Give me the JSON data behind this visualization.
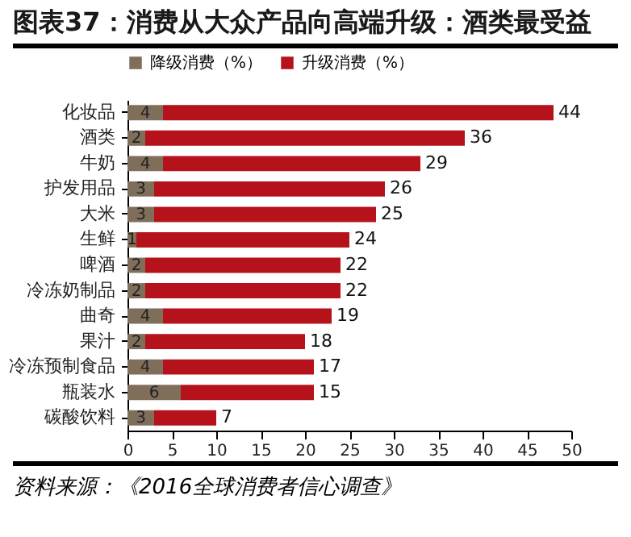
{
  "chart_data": {
    "type": "bar",
    "orientation": "horizontal",
    "stacked": true,
    "title": "图表37：消费从大众产品向高端升级：酒类最受益",
    "categories": [
      "化妆品",
      "酒类",
      "牛奶",
      "护发用品",
      "大米",
      "生鲜",
      "啤酒",
      "冷冻奶制品",
      "曲奇",
      "果汁",
      "冷冻预制食品",
      "瓶装水",
      "碳酸饮料"
    ],
    "series": [
      {
        "name": "降级消费（%）",
        "color": "#7f6f5a",
        "values": [
          4,
          2,
          4,
          3,
          3,
          1,
          2,
          2,
          4,
          2,
          4,
          6,
          3
        ]
      },
      {
        "name": "升级消费（%）",
        "color": "#b5121b",
        "values": [
          44,
          36,
          29,
          26,
          25,
          24,
          22,
          22,
          19,
          18,
          17,
          15,
          7
        ]
      }
    ],
    "xlim": [
      0,
      50
    ],
    "xticks": [
      0,
      5,
      10,
      15,
      20,
      25,
      30,
      35,
      40,
      45,
      50
    ],
    "data_labels": true,
    "legend": "top",
    "grid": false,
    "annotations": [
      "资料来源：《2016全球消费者信心调查》"
    ]
  }
}
